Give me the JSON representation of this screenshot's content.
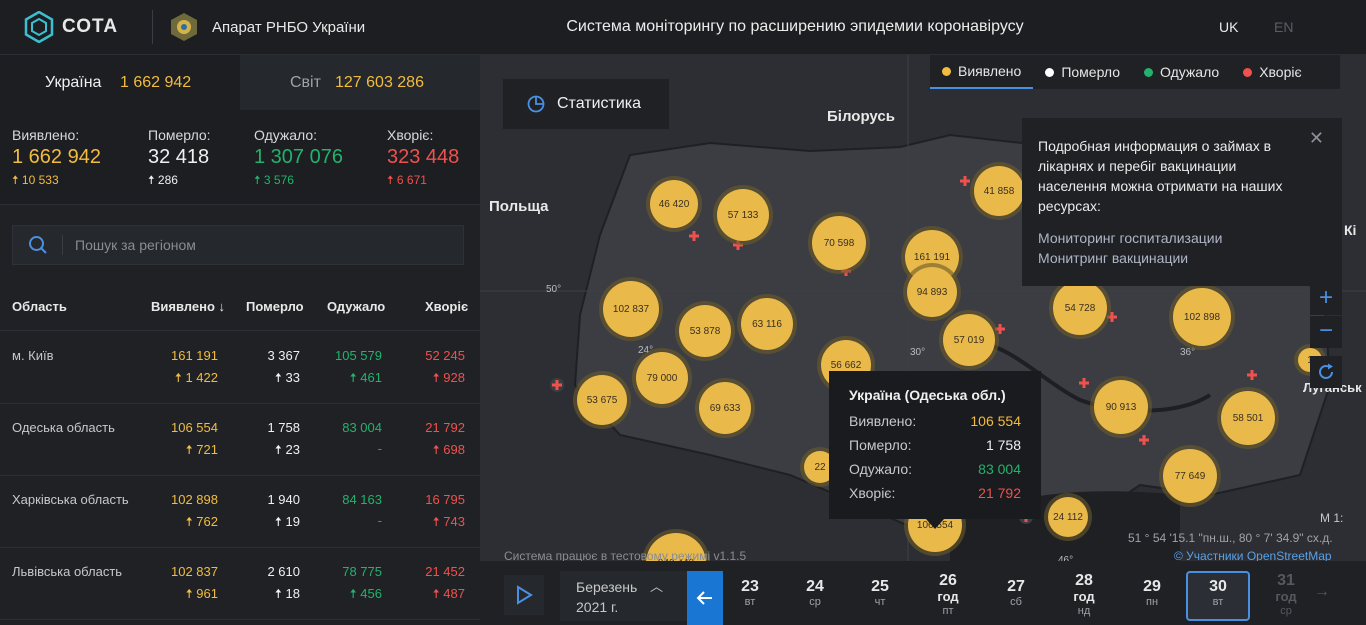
{
  "header": {
    "logo_text": "СОТА",
    "org_name": "Апарат РНБО України",
    "title": "Система моніторингу по расширению эпидемии коронавірусу",
    "lang_uk": "UK",
    "lang_en": "EN"
  },
  "tabs": {
    "ukraine_label": "Україна",
    "ukraine_value": "1 662 942",
    "world_label": "Світ",
    "world_value": "127 603 286"
  },
  "totals": {
    "detected": {
      "label": "Виявлено:",
      "value": "1 662 942",
      "delta": "10 533"
    },
    "died": {
      "label": "Померло:",
      "value": "32 418",
      "delta": "286"
    },
    "recovered": {
      "label": "Одужало:",
      "value": "1 307 076",
      "delta": "3 576"
    },
    "sick": {
      "label": "Хворіє:",
      "value": "323 448",
      "delta": "6 671"
    }
  },
  "search": {
    "placeholder": "Пошук за регіоном"
  },
  "table": {
    "headers": {
      "region": "Область",
      "detected": "Виявлено",
      "died": "Померло",
      "recovered": "Одужало",
      "sick": "Хворіє"
    },
    "rows": [
      {
        "region": "м. Київ",
        "detected": "161 191",
        "detected_d": "1 422",
        "died": "3 367",
        "died_d": "33",
        "recovered": "105 579",
        "recovered_d": "461",
        "sick": "52 245",
        "sick_d": "928"
      },
      {
        "region": "Одеська область",
        "detected": "106 554",
        "detected_d": "721",
        "died": "1 758",
        "died_d": "23",
        "recovered": "83 004",
        "recovered_d": "-",
        "sick": "21 792",
        "sick_d": "698"
      },
      {
        "region": "Харківська область",
        "detected": "102 898",
        "detected_d": "762",
        "died": "1 940",
        "died_d": "19",
        "recovered": "84 163",
        "recovered_d": "-",
        "sick": "16 795",
        "sick_d": "743"
      },
      {
        "region": "Львівська область",
        "detected": "102 837",
        "detected_d": "961",
        "died": "2 610",
        "died_d": "18",
        "recovered": "78 775",
        "recovered_d": "456",
        "sick": "21 452",
        "sick_d": "487"
      }
    ]
  },
  "map": {
    "stat_button": "Статистика",
    "legend": [
      {
        "label": "Виявлено",
        "color": "#f2bc3e"
      },
      {
        "label": "Померло",
        "color": "#ffffff"
      },
      {
        "label": "Одужало",
        "color": "#21b36b"
      },
      {
        "label": "Хворіє",
        "color": "#f0514d"
      }
    ],
    "place_labels": [
      "Білорусь",
      "Польща",
      "Луганськ",
      "Кі"
    ],
    "grid_labels": [
      "50°",
      "24°",
      "30°",
      "36°",
      "46°"
    ],
    "clusters": [
      "46 420",
      "57 133",
      "70 598",
      "161 191",
      "94 893",
      "41 858",
      "102 837",
      "53 878",
      "63 116",
      "56 662",
      "57 019",
      "54 728",
      "102 898",
      "53 675",
      "79 000",
      "69 633",
      "90 913",
      "58 501",
      "77 649",
      "22",
      "106 554",
      "24 112",
      "940 443",
      "1"
    ],
    "info": {
      "text": "Подробная информация о займах в лікарнях и перебіг вакцинации населення можна отримати на наших ресурсах:",
      "link1": "Мониторинг госпитализации",
      "link2": "Монитринг вакцинации"
    },
    "tooltip": {
      "title": "Україна (Одеська обл.)",
      "rows": [
        {
          "label": "Виявлено:",
          "value": "106 554"
        },
        {
          "label": "Померло:",
          "value": "1 758"
        },
        {
          "label": "Одужало:",
          "value": "83 004"
        },
        {
          "label": "Хворіє:",
          "value": "21 792"
        }
      ]
    },
    "message": "Система працює в тестовому режимі v1.1.5",
    "coords": "51 ° 54 '15.1 \"пн.ш., 80 ° 7' 34.9\" сх.д.",
    "scale": "М 1:",
    "osm": "© Участники OpenStreetMap"
  },
  "timeline": {
    "month": "Березень",
    "year": "2021 г.",
    "days": [
      {
        "num": "23",
        "sub": "вт",
        "god": ""
      },
      {
        "num": "24",
        "sub": "ср",
        "god": ""
      },
      {
        "num": "25",
        "sub": "чт",
        "god": ""
      },
      {
        "num": "26",
        "sub": "пт",
        "god": "год"
      },
      {
        "num": "27",
        "sub": "сб",
        "god": ""
      },
      {
        "num": "28",
        "sub": "нд",
        "god": "год"
      },
      {
        "num": "29",
        "sub": "пн",
        "god": ""
      },
      {
        "num": "30",
        "sub": "вт",
        "god": ""
      },
      {
        "num": "31",
        "sub": "ср",
        "god": "год"
      }
    ]
  }
}
